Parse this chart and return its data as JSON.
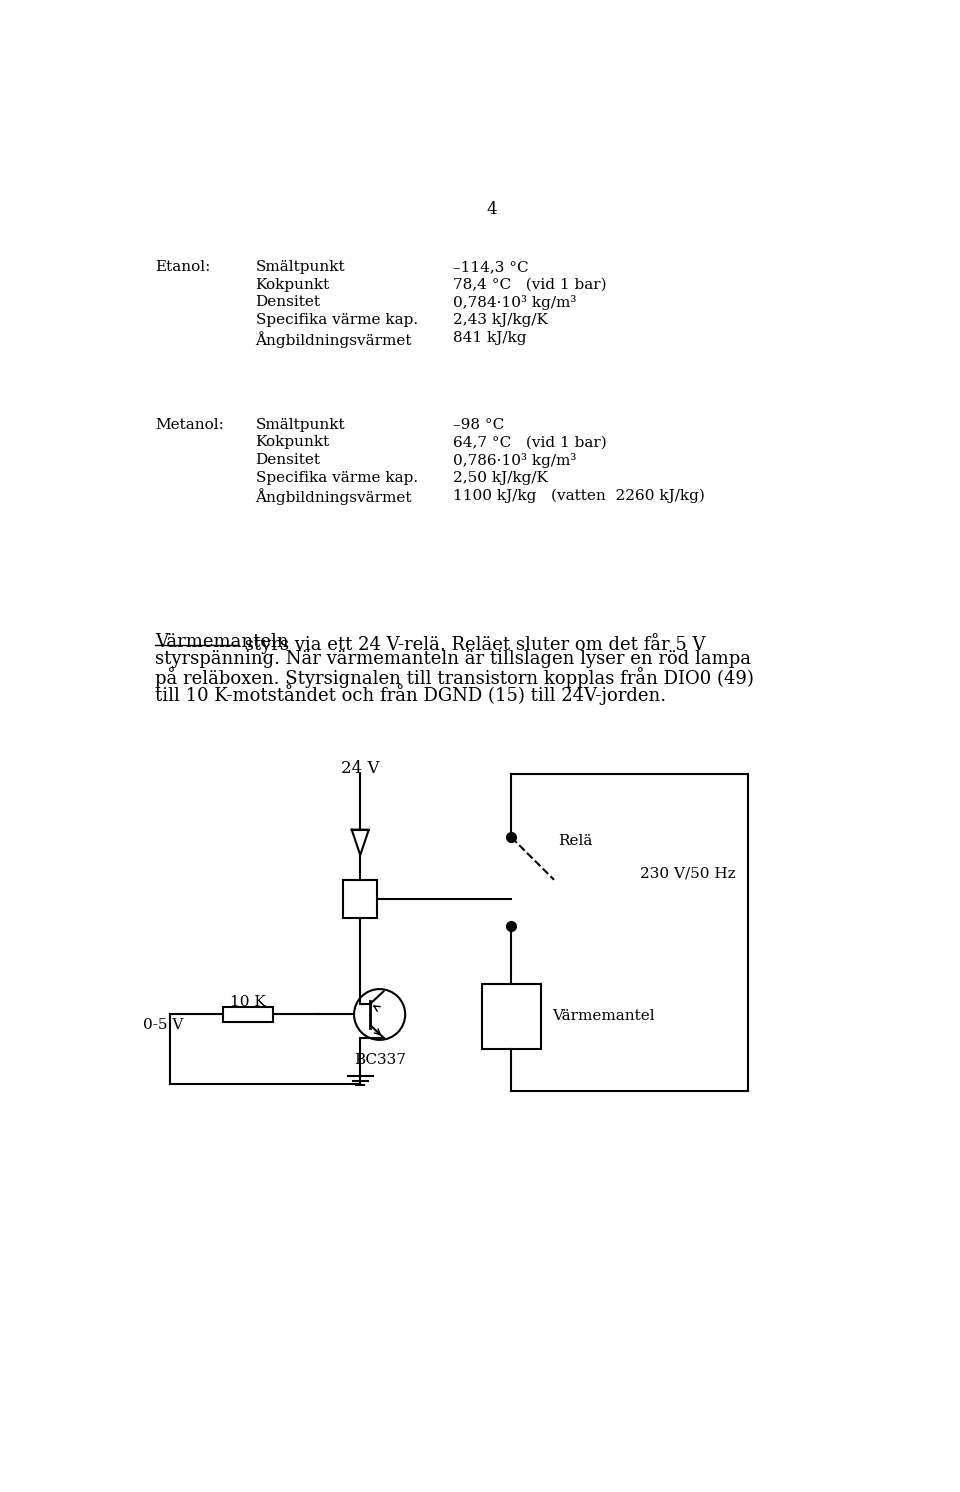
{
  "page_number": "4",
  "background_color": "#ffffff",
  "text_color": "#000000",
  "etanol_label": "Etanol:",
  "etanol_props": [
    [
      "Smältpunkt",
      "–114,3 °C"
    ],
    [
      "Kokpunkt",
      "78,4 °C   (vid 1 bar)"
    ],
    [
      "Densitet",
      "0,784·10³ kg/m³"
    ],
    [
      "Specifika värme kap.",
      "2,43 kJ/kg/K"
    ],
    [
      "Ångbildningsvärmet",
      "841 kJ/kg"
    ]
  ],
  "metanol_label": "Metanol:",
  "metanol_props": [
    [
      "Smältpunkt",
      "–98 °C"
    ],
    [
      "Kokpunkt",
      "64,7 °C   (vid 1 bar)"
    ],
    [
      "Densitet",
      "0,786·10³ kg/m³"
    ],
    [
      "Specifika värme kap.",
      "2,50 kJ/kg/K"
    ],
    [
      "Ångbildningsvärmet",
      "1100 kJ/kg   (vatten  2260 kJ/kg)"
    ]
  ],
  "para_line1_underlined": "Värmemanteln",
  "para_line1_rest": " styrs via ett 24 V-relä. Reläet sluter om det får 5 V",
  "para_lines": [
    "styrspänning. När värmemanteln är tillslagen lyser en röd lampa",
    "på reläboxen. Styrsignalen till transistorn kopplas från DIO0 (49)",
    "till 10 K-motståndet och från DGND (15) till 24V-jorden."
  ],
  "label_24V": "24 V",
  "label_rela": "Relä",
  "label_230V": "230 V/50 Hz",
  "label_varmemantel": "Värmemantel",
  "label_10K": "10 K",
  "label_0_5V": "0-5 V",
  "label_BC337": "BC337"
}
